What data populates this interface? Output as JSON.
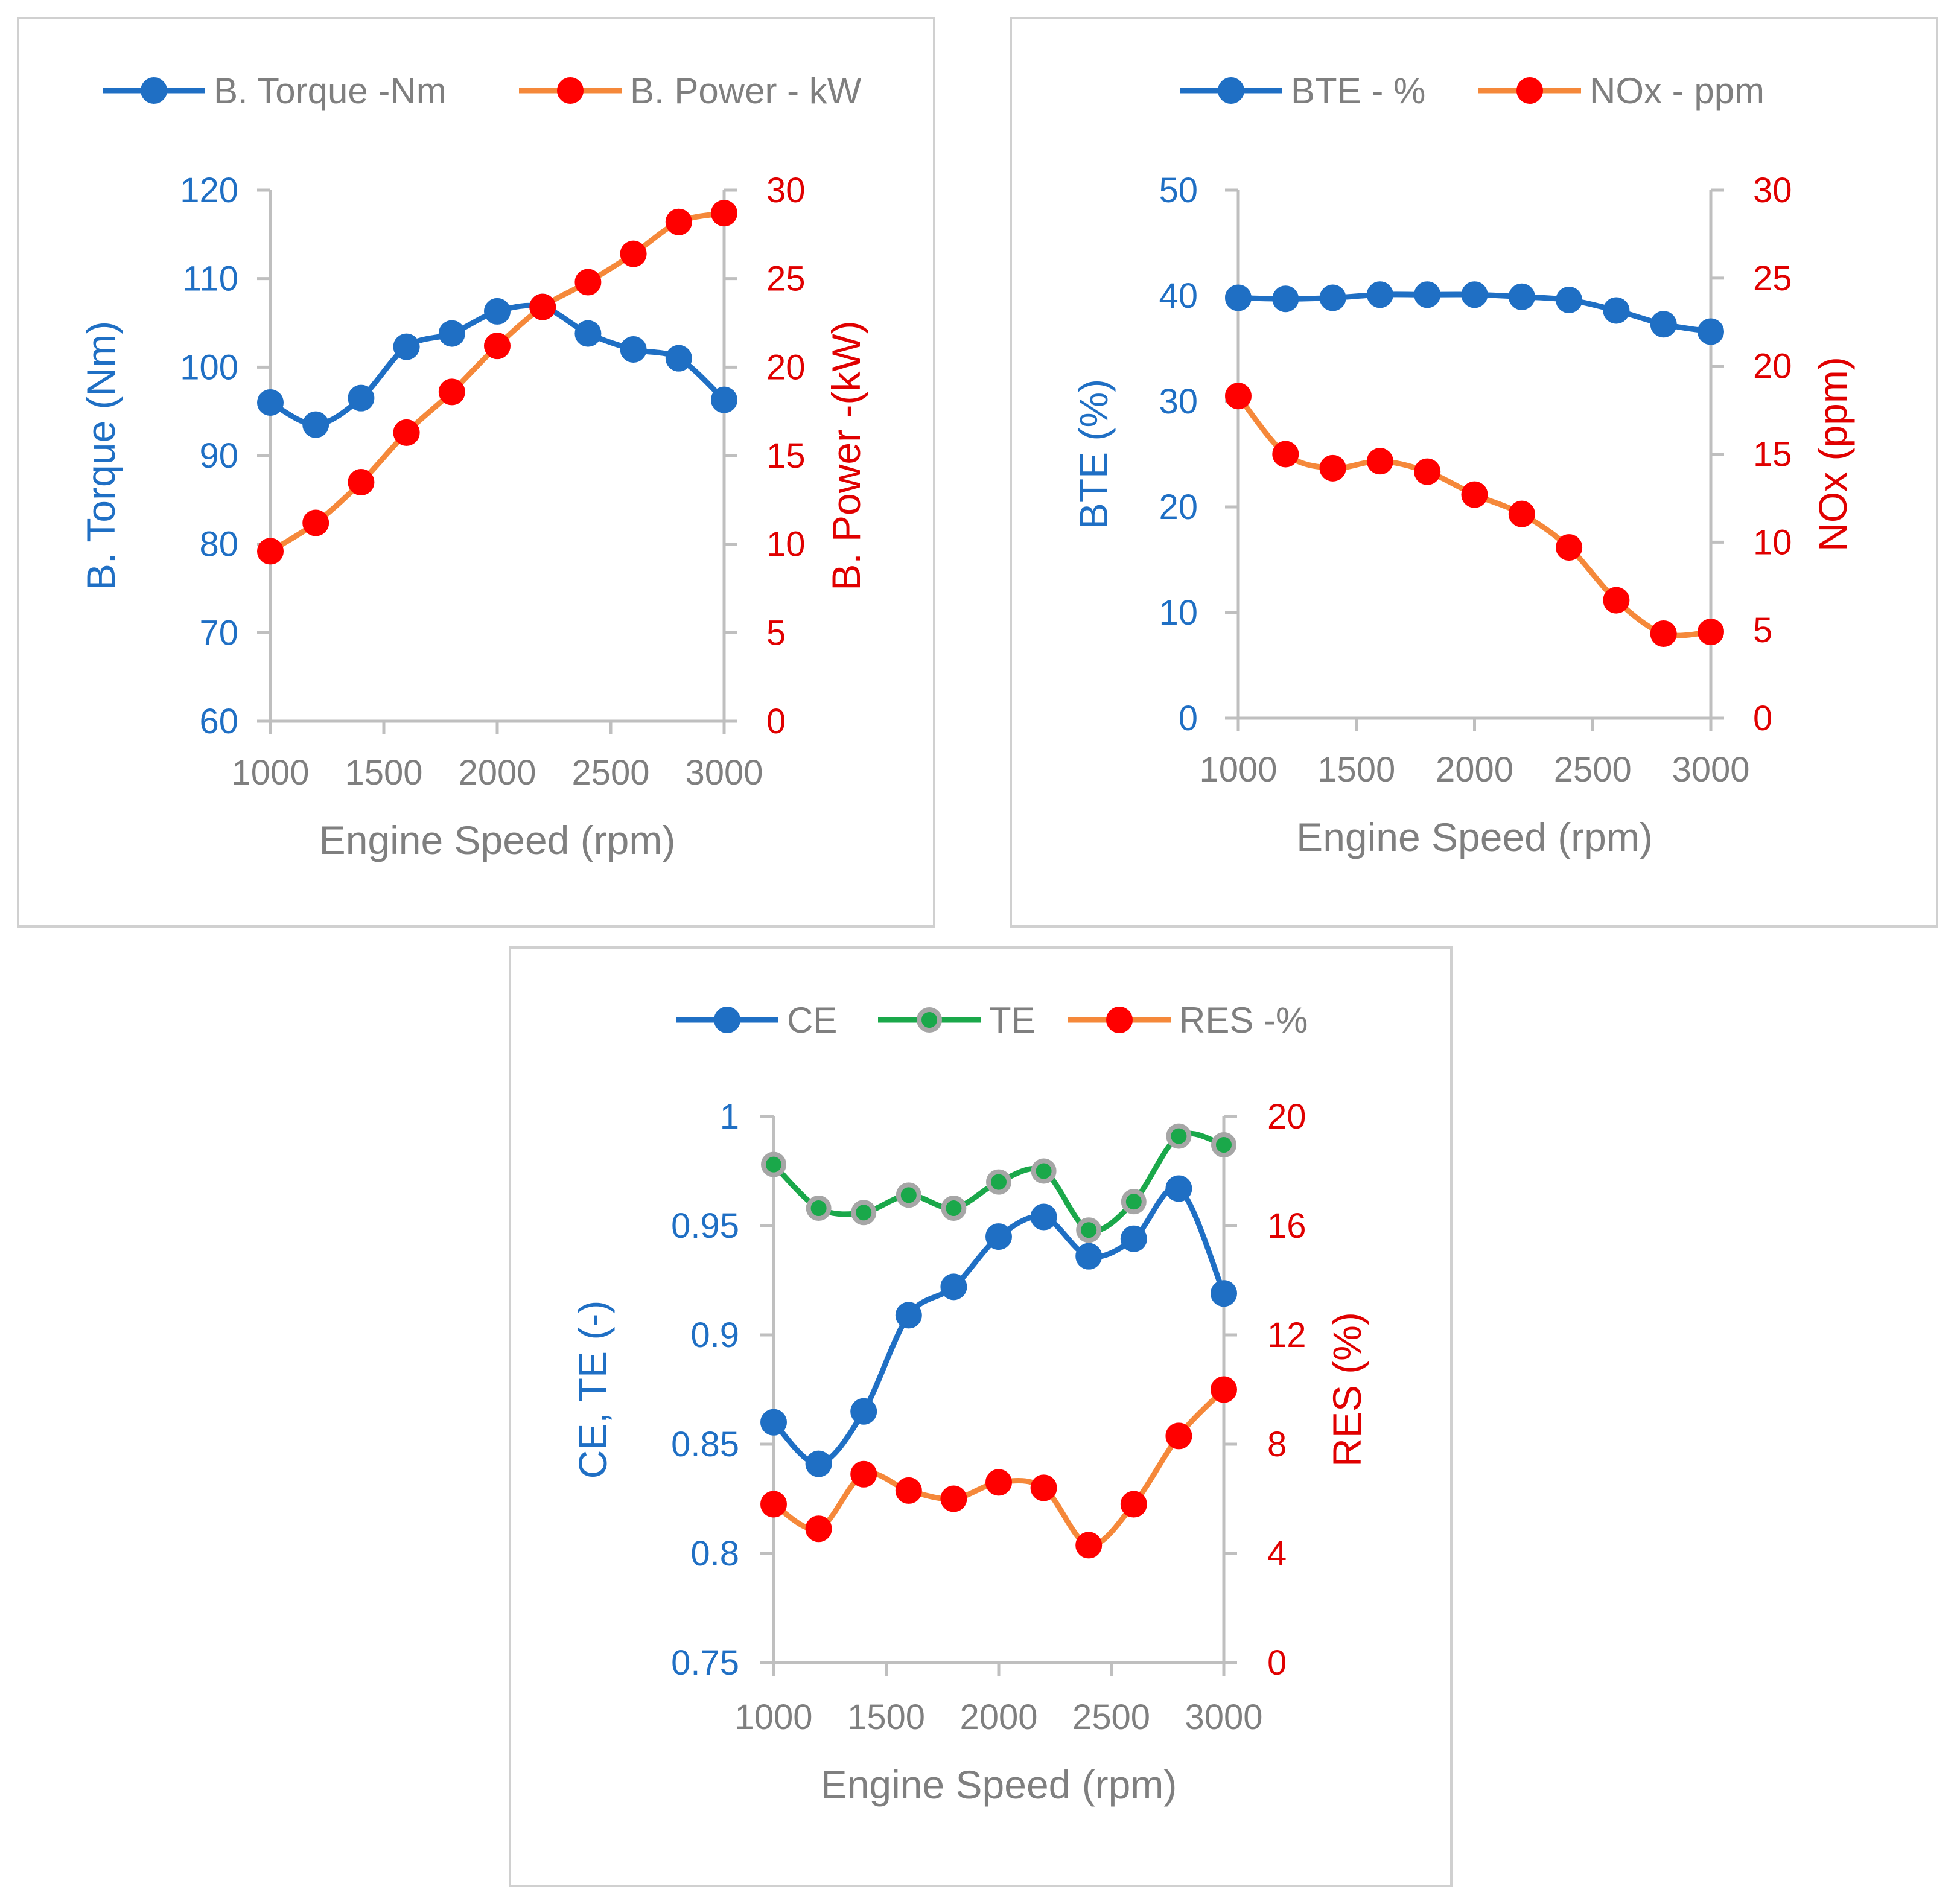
{
  "colors": {
    "blue": "#1f6fc4",
    "orange": "#f5883a",
    "green": "#1aa84a",
    "red_marker": "#ff0000",
    "gray_text": "#7f7f7f",
    "red_axis": "#e00000",
    "marker_edge_gray": "#a6a6a6",
    "frame": "#d0d0d0"
  },
  "chart_data": [
    {
      "type": "line",
      "xlabel": "Engine Speed (rpm)",
      "x": [
        1000,
        1200,
        1400,
        1600,
        1800,
        2000,
        2200,
        2400,
        2600,
        2800,
        3000
      ],
      "x_ticks": [
        1000,
        1500,
        2000,
        2500,
        3000
      ],
      "xlim": [
        1000,
        3000
      ],
      "y_left": {
        "label": "B. Torque (Nm)",
        "lim": [
          60,
          120
        ],
        "ticks": [
          60,
          70,
          80,
          90,
          100,
          110,
          120
        ]
      },
      "y_right": {
        "label": "B. Power -(kW)",
        "lim": [
          0,
          30
        ],
        "ticks": [
          0,
          5,
          10,
          15,
          20,
          25,
          30
        ]
      },
      "series": [
        {
          "name": "B. Torque -Nm",
          "axis": "left",
          "color": "blue",
          "marker": "blue",
          "values": [
            96,
            93.5,
            96.5,
            102.3,
            103.8,
            106.3,
            106.8,
            103.8,
            102,
            101,
            96.3
          ]
        },
        {
          "name": "B. Power - kW",
          "axis": "right",
          "color": "orange",
          "marker": "red_marker",
          "values": [
            9.6,
            11.2,
            13.5,
            16.3,
            18.6,
            21.2,
            23.4,
            24.8,
            26.4,
            28.2,
            28.7
          ]
        }
      ],
      "legend_position": "top"
    },
    {
      "type": "line",
      "xlabel": "Engine Speed (rpm)",
      "x": [
        1000,
        1200,
        1400,
        1600,
        1800,
        2000,
        2200,
        2400,
        2600,
        2800,
        3000
      ],
      "x_ticks": [
        1000,
        1500,
        2000,
        2500,
        3000
      ],
      "xlim": [
        1000,
        3000
      ],
      "y_left": {
        "label": "BTE (%)",
        "lim": [
          0,
          50
        ],
        "ticks": [
          0,
          10,
          20,
          30,
          40,
          50
        ]
      },
      "y_right": {
        "label": "NOx (ppm)",
        "lim": [
          0,
          30
        ],
        "ticks": [
          0,
          5,
          10,
          15,
          20,
          25,
          30
        ]
      },
      "series": [
        {
          "name": "BTE - %",
          "axis": "left",
          "color": "blue",
          "marker": "blue",
          "values": [
            39.8,
            39.7,
            39.8,
            40.1,
            40.1,
            40.1,
            39.9,
            39.6,
            38.6,
            37.3,
            36.6
          ]
        },
        {
          "name": "NOx - ppm",
          "axis": "right",
          "color": "orange",
          "marker": "red_marker",
          "values": [
            18.3,
            15,
            14.2,
            14.6,
            14,
            12.7,
            11.6,
            9.7,
            6.7,
            4.8,
            4.9
          ]
        }
      ],
      "legend_position": "top"
    },
    {
      "type": "line",
      "xlabel": "Engine Speed (rpm)",
      "x": [
        1000,
        1200,
        1400,
        1600,
        1800,
        2000,
        2200,
        2400,
        2600,
        2800,
        3000
      ],
      "x_ticks": [
        1000,
        1500,
        2000,
        2500,
        3000
      ],
      "xlim": [
        1000,
        3000
      ],
      "y_left": {
        "label": "CE, TE (-)",
        "lim": [
          0.75,
          1
        ],
        "ticks": [
          "0.75",
          "0.8",
          "0.85",
          "0.9",
          "0.95",
          "1"
        ]
      },
      "y_right": {
        "label": "RES (%)",
        "lim": [
          0,
          20
        ],
        "ticks": [
          0,
          4,
          8,
          12,
          16,
          20
        ]
      },
      "series": [
        {
          "name": "CE",
          "axis": "left",
          "color": "blue",
          "marker": "blue",
          "values": [
            0.86,
            0.841,
            0.865,
            0.909,
            0.922,
            0.945,
            0.954,
            0.936,
            0.944,
            0.967,
            0.919
          ]
        },
        {
          "name": "TE",
          "axis": "left",
          "color": "green",
          "marker": "green",
          "values": [
            0.978,
            0.958,
            0.956,
            0.964,
            0.958,
            0.97,
            0.975,
            0.948,
            0.961,
            0.991,
            0.987
          ]
        },
        {
          "name": "RES -%",
          "axis": "right",
          "color": "orange",
          "marker": "red_marker",
          "values": [
            5.8,
            4.9,
            6.9,
            6.3,
            6,
            6.6,
            6.4,
            4.3,
            5.8,
            8.3,
            10
          ]
        }
      ],
      "legend_position": "top"
    }
  ]
}
